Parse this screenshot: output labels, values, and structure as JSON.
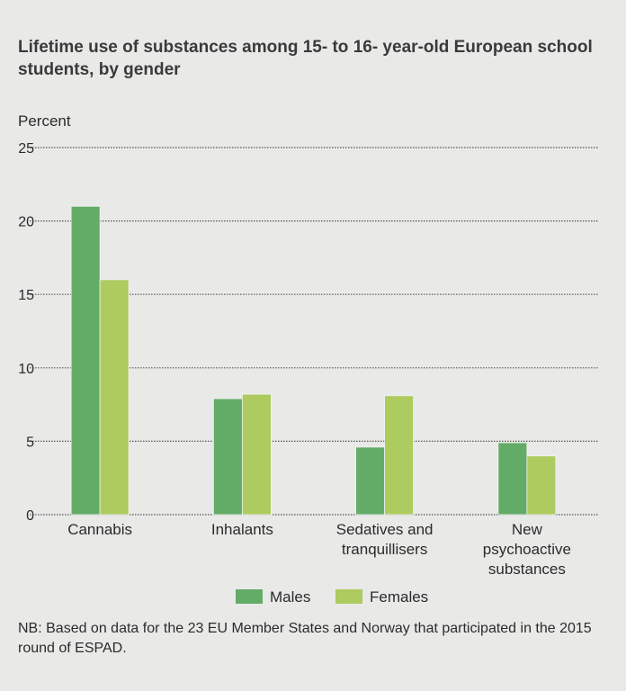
{
  "chart_data": {
    "type": "bar",
    "title": "Lifetime use of substances among 15- to 16- year-old European school students, by gender",
    "ylabel": "Percent",
    "xlabel": "",
    "ylim": [
      0,
      25
    ],
    "yticks": [
      0,
      5,
      10,
      15,
      20,
      25
    ],
    "grid": true,
    "legend_position": "bottom",
    "categories": [
      [
        "Cannabis"
      ],
      [
        "Inhalants"
      ],
      [
        "Sedatives and",
        "tranquillisers"
      ],
      [
        "New",
        "psychoactive",
        "substances"
      ]
    ],
    "series": [
      {
        "name": "Males",
        "color": "#63ac68",
        "values": [
          21,
          7.9,
          4.6,
          4.9
        ]
      },
      {
        "name": "Females",
        "color": "#adcb5e",
        "values": [
          16,
          8.2,
          8.1,
          4.0
        ]
      }
    ],
    "note": "NB: Based on data for the 23 EU Member States and Norway that participated in the 2015 round of ESPAD."
  }
}
